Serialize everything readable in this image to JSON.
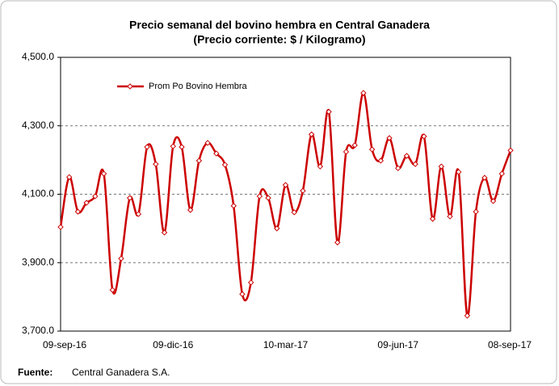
{
  "chart_data": {
    "type": "line",
    "title": [
      "Precio semanal del bovino  hembra en Central Ganadera",
      "(Precio corriente: $ / Kilogramo)"
    ],
    "categories": [
      "09-sep-16",
      null,
      null,
      null,
      null,
      null,
      null,
      null,
      null,
      null,
      null,
      null,
      null,
      "09-dic-16",
      null,
      null,
      null,
      null,
      null,
      null,
      null,
      null,
      null,
      null,
      null,
      null,
      "10-mar-17",
      null,
      null,
      null,
      null,
      null,
      null,
      null,
      null,
      null,
      null,
      null,
      null,
      "09-jun-17",
      null,
      null,
      null,
      null,
      null,
      null,
      null,
      null,
      null,
      null,
      null,
      null,
      "08-sep-17"
    ],
    "series": [
      {
        "name": "Prom Po Bovino Hembra",
        "color": "#cc0000",
        "values": [
          4004,
          4150,
          4049,
          4075,
          4094,
          4160,
          3820,
          3912,
          4089,
          4042,
          4238,
          4188,
          3988,
          4240,
          4238,
          4054,
          4198,
          4250,
          4219,
          4186,
          4066,
          3808,
          3842,
          4094,
          4089,
          4000,
          4127,
          4047,
          4110,
          4275,
          4181,
          4341,
          3959,
          4224,
          4243,
          4396,
          4231,
          4198,
          4264,
          4176,
          4212,
          4188,
          4269,
          4028,
          4181,
          4035,
          4165,
          3745,
          4049,
          4148,
          4080,
          4160,
          4228
        ]
      }
    ],
    "ylim": [
      3700,
      4500
    ],
    "yticks": [
      {
        "value": 3700,
        "label": "3,700.0"
      },
      {
        "value": 3900,
        "label": "3,900.0"
      },
      {
        "value": 4100,
        "label": "4,100.0"
      },
      {
        "value": 4300,
        "label": "4,300.0"
      },
      {
        "value": 4500,
        "label": "4,500.0"
      }
    ],
    "grid": true,
    "legend": "top-left",
    "source_label": "Fuente:",
    "source": "Central Ganadera S.A."
  }
}
